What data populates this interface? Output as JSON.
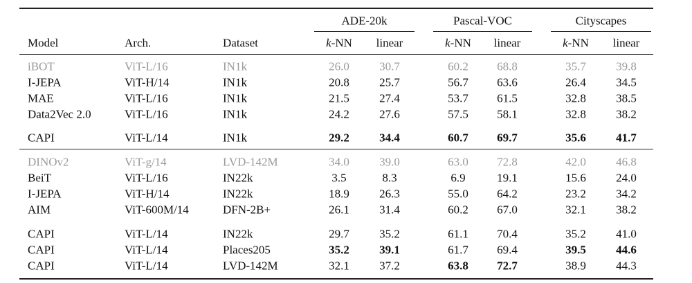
{
  "table": {
    "group_headers": [
      {
        "label": "ADE-20k",
        "columns": [
          "k-NN",
          "linear"
        ]
      },
      {
        "label": "Pascal-VOC",
        "columns": [
          "k-NN",
          "linear"
        ]
      },
      {
        "label": "Cityscapes",
        "columns": [
          "k-NN",
          "linear"
        ]
      }
    ],
    "headers": [
      "Model",
      "Arch.",
      "Dataset"
    ],
    "rows": [
      [
        "iBOT",
        "ViT-L/16",
        "IN1k",
        "26.0",
        "30.7",
        "60.2",
        "68.8",
        "35.7",
        "39.8"
      ],
      [
        "I-JEPA",
        "ViT-H/14",
        "IN1k",
        "20.8",
        "25.7",
        "56.7",
        "63.6",
        "26.4",
        "34.5"
      ],
      [
        "MAE",
        "ViT-L/16",
        "IN1k",
        "21.5",
        "27.4",
        "53.7",
        "61.5",
        "32.8",
        "38.5"
      ],
      [
        "Data2Vec 2.0",
        "ViT-L/16",
        "IN1k",
        "24.2",
        "27.6",
        "57.5",
        "58.1",
        "32.8",
        "38.2"
      ],
      [
        "CAPI",
        "ViT-L/14",
        "IN1k",
        "29.2",
        "34.4",
        "60.7",
        "69.7",
        "35.6",
        "41.7"
      ],
      [
        "DINOv2",
        "ViT-g/14",
        "LVD-142M",
        "34.0",
        "39.0",
        "63.0",
        "72.8",
        "42.0",
        "46.8"
      ],
      [
        "BeiT",
        "ViT-L/16",
        "IN22k",
        "3.5",
        "8.3",
        "6.9",
        "19.1",
        "15.6",
        "24.0"
      ],
      [
        "I-JEPA",
        "ViT-H/14",
        "IN22k",
        "18.9",
        "26.3",
        "55.0",
        "64.2",
        "23.2",
        "34.2"
      ],
      [
        "AIM",
        "ViT-600M/14",
        "DFN-2B+",
        "26.1",
        "31.4",
        "60.2",
        "67.0",
        "32.1",
        "38.2"
      ],
      [
        "CAPI",
        "ViT-L/14",
        "IN22k",
        "29.7",
        "35.2",
        "61.1",
        "70.4",
        "35.2",
        "41.0"
      ],
      [
        "CAPI",
        "ViT-L/14",
        "Places205",
        "35.2",
        "39.1",
        "61.7",
        "69.4",
        "39.5",
        "44.6"
      ],
      [
        "CAPI",
        "ViT-L/14",
        "LVD-142M",
        "32.1",
        "37.2",
        "63.8",
        "72.7",
        "38.9",
        "44.3"
      ]
    ]
  }
}
